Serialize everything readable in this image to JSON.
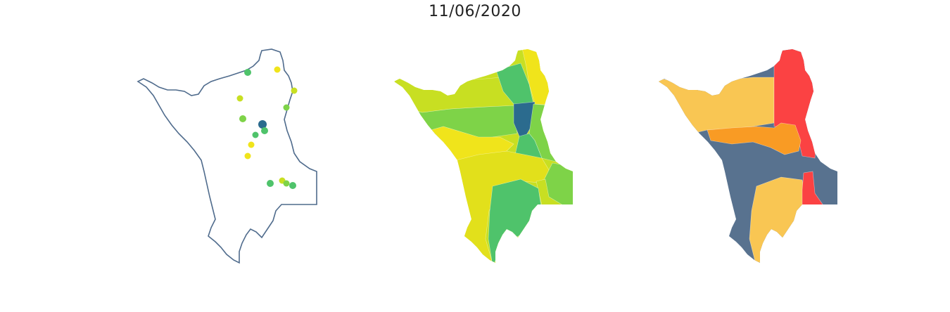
{
  "figure": {
    "title": "11/06/2020"
  },
  "colors": {
    "outline": "#4f6b8c",
    "yellow": "#f0e41b",
    "yellow_green": "#c8df22",
    "light_green": "#7ed348",
    "green": "#4fc36b",
    "teal": "#2b6b8e",
    "risk_red": "#fb4243",
    "risk_orange": "#f99b24",
    "risk_yellow": "#f9c653",
    "risk_slate": "#58728f"
  },
  "panels": [
    {
      "name": "station-points",
      "points": [
        {
          "color_key": "green"
        },
        {
          "color_key": "yellow"
        },
        {
          "color_key": "yellow_green"
        },
        {
          "color_key": "yellow_green"
        },
        {
          "color_key": "light_green"
        },
        {
          "color_key": "light_green"
        },
        {
          "color_key": "teal"
        },
        {
          "color_key": "green"
        },
        {
          "color_key": "green"
        },
        {
          "color_key": "yellow"
        },
        {
          "color_key": "yellow"
        },
        {
          "color_key": "green"
        },
        {
          "color_key": "yellow_green"
        },
        {
          "color_key": "light_green"
        },
        {
          "color_key": "green"
        }
      ]
    },
    {
      "name": "interpolated-basins",
      "regions": [
        {
          "color_key": "yellow"
        },
        {
          "color_key": "yellow_green"
        },
        {
          "color_key": "light_green"
        },
        {
          "color_key": "green"
        },
        {
          "color_key": "teal"
        }
      ]
    },
    {
      "name": "risk-classes",
      "regions": [
        {
          "color_key": "risk_red"
        },
        {
          "color_key": "risk_orange"
        },
        {
          "color_key": "risk_yellow"
        },
        {
          "color_key": "risk_slate"
        }
      ]
    }
  ]
}
